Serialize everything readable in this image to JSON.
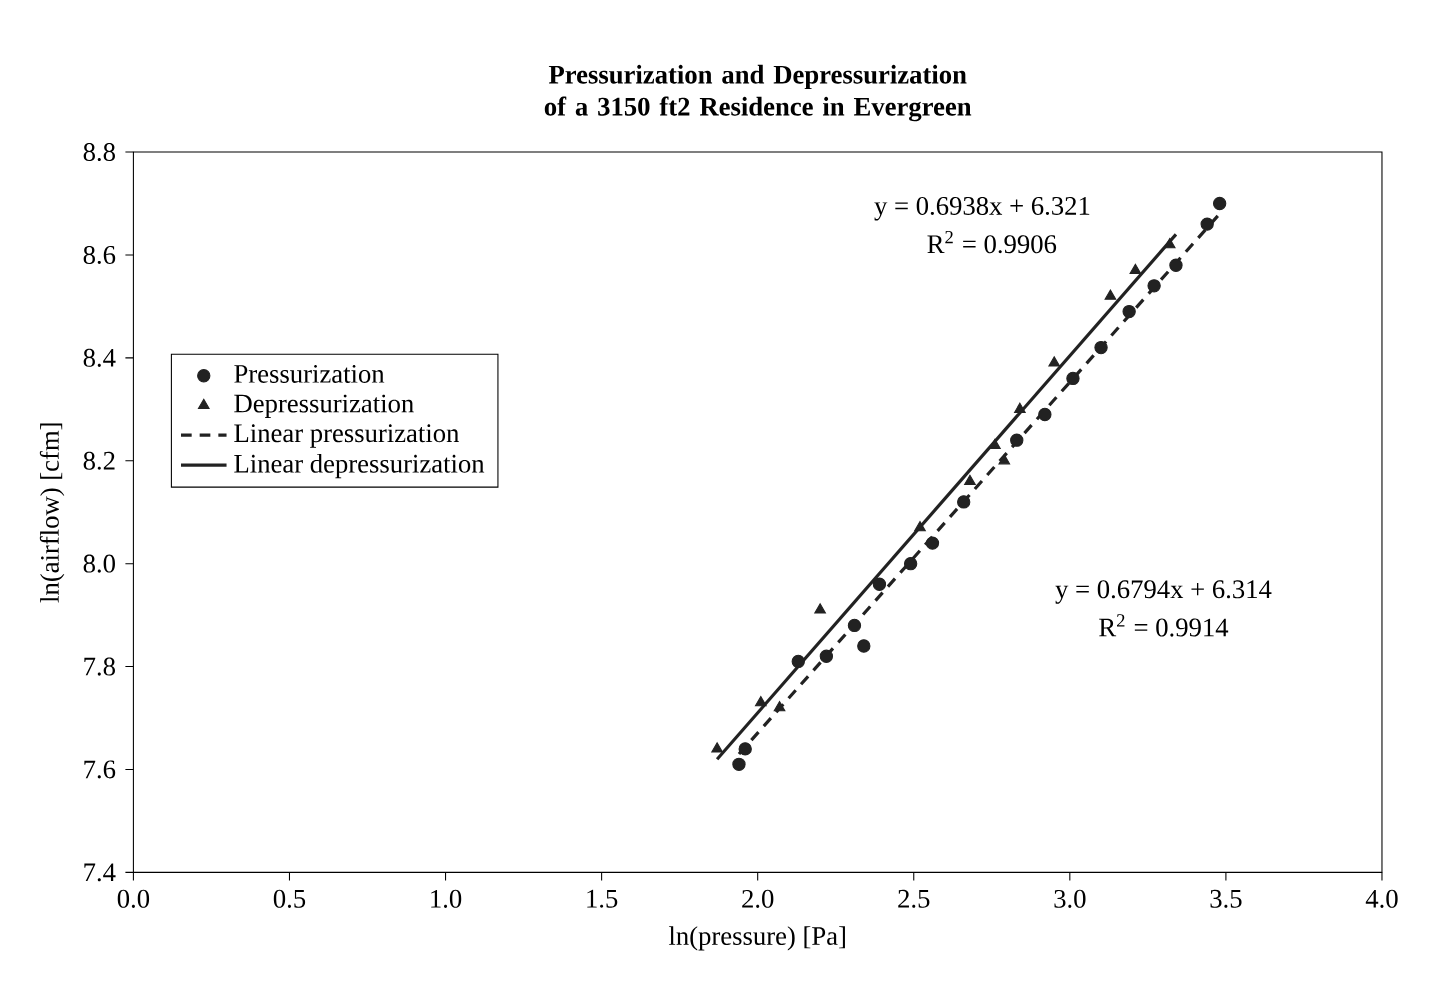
{
  "chart_data": {
    "type": "scatter",
    "title": "Pressurization and Depressurization of a 3150 ft2 Residence in Evergreen",
    "xlabel": "ln(pressure) [Pa]",
    "ylabel": "ln(airflow) [cfm]",
    "xlim": [
      0,
      4
    ],
    "ylim": [
      7.4,
      8.8
    ],
    "xticks": [
      {
        "value": 0,
        "label": "0.0"
      },
      {
        "value": 0.5,
        "label": "0.5"
      },
      {
        "value": 1,
        "label": "1.0"
      },
      {
        "value": 1.5,
        "label": "1.5"
      },
      {
        "value": 2,
        "label": "2.0"
      },
      {
        "value": 2.5,
        "label": "2.5"
      },
      {
        "value": 3,
        "label": "3.0"
      },
      {
        "value": 3.5,
        "label": "3.5"
      },
      {
        "value": 4,
        "label": "4.0"
      }
    ],
    "yticks": [
      7.4,
      7.6,
      7.8,
      {
        "value": 8,
        "label": "8.0"
      },
      8.2,
      8.4,
      8.6,
      8.8
    ],
    "legend": "left",
    "grid": false,
    "series": [
      {
        "name": "Pressurization",
        "marker": "circle",
        "color": "#222222",
        "x": [
          1.94,
          1.96,
          2.13,
          2.22,
          2.31,
          2.34,
          2.39,
          2.49,
          2.56,
          2.66,
          2.83,
          2.92,
          3.01,
          3.1,
          3.19,
          3.27,
          3.34,
          3.44,
          3.48
        ],
        "values": [
          7.61,
          7.64,
          7.81,
          7.82,
          7.88,
          7.84,
          7.96,
          8.0,
          8.04,
          8.12,
          8.24,
          8.29,
          8.36,
          8.42,
          8.49,
          8.54,
          8.58,
          8.66,
          8.7
        ]
      },
      {
        "name": "Depressurization",
        "marker": "triangle",
        "color": "#222222",
        "x": [
          1.87,
          2.01,
          2.07,
          2.2,
          2.52,
          2.68,
          2.76,
          2.79,
          2.84,
          2.95,
          3.13,
          3.21,
          3.32
        ],
        "values": [
          7.64,
          7.73,
          7.72,
          7.91,
          8.07,
          8.16,
          8.23,
          8.2,
          8.3,
          8.39,
          8.52,
          8.57,
          8.62
        ]
      },
      {
        "name": "Linear pressurization",
        "type": "line",
        "marker": "none",
        "line_style": "dashed",
        "color": "#222222",
        "x": [
          1.94,
          3.48
        ],
        "values": [
          7.63,
          8.68
        ]
      },
      {
        "name": "Linear depressurization",
        "type": "line",
        "marker": "none",
        "line_style": "solid",
        "color": "#222222",
        "x": [
          1.87,
          3.34
        ],
        "values": [
          7.62,
          8.64
        ]
      }
    ],
    "annotations": [
      "y = 0.6938x + 6.321",
      "R$^{2}$ = 0.9906",
      "y = 0.6794x + 6.314",
      "R$^{2}$ = 0.9914"
    ]
  }
}
